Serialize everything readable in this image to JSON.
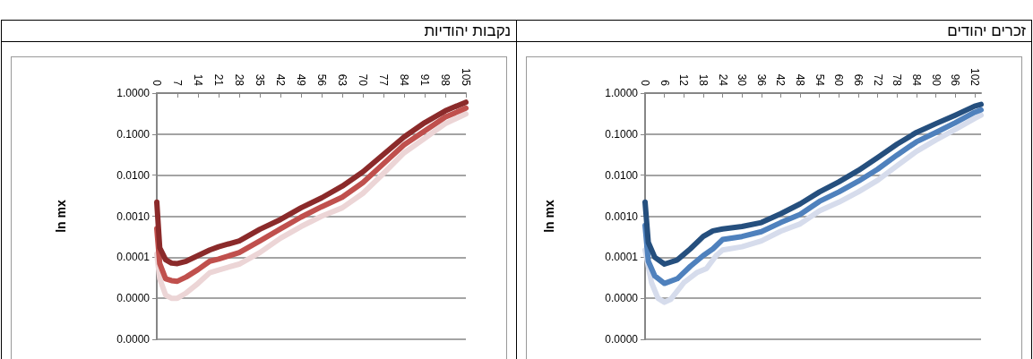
{
  "chart_data": [
    {
      "type": "line",
      "title": "זכרים יהודים",
      "ylabel": "ln mx",
      "log": "y",
      "grid": "y",
      "xlim": [
        0,
        104
      ],
      "xticks": [
        0,
        6,
        12,
        18,
        24,
        30,
        36,
        42,
        48,
        54,
        60,
        66,
        72,
        78,
        84,
        90,
        96,
        102
      ],
      "ylim": [
        1e-06,
        1
      ],
      "yticks": [
        {
          "value": 1e-06,
          "label": "0.0000"
        },
        {
          "value": 1e-05,
          "label": "0.0000"
        },
        {
          "value": 0.0001,
          "label": "0.0001"
        },
        {
          "value": 0.001,
          "label": "0.0010"
        },
        {
          "value": 0.01,
          "label": "0.0100"
        },
        {
          "value": 0.1,
          "label": "0.1000"
        },
        {
          "value": 1,
          "label": "1.0000"
        }
      ],
      "series": [
        {
          "color": "#d6dcec",
          "x": [
            0,
            2,
            4,
            6,
            8,
            12,
            16,
            19,
            22,
            24,
            30,
            36,
            42,
            48,
            54,
            60,
            66,
            72,
            78,
            84,
            90,
            96,
            102,
            104
          ],
          "values": [
            0.00015,
            2.4e-05,
            1e-05,
            8e-06,
            9.5e-06,
            2.4e-05,
            4.2e-05,
            5.3e-05,
            0.00011,
            0.00015,
            0.00018,
            0.00025,
            0.00043,
            0.00065,
            0.00135,
            0.0022,
            0.0039,
            0.0075,
            0.017,
            0.038,
            0.072,
            0.13,
            0.24,
            0.29
          ]
        },
        {
          "color": "#4f81bd",
          "x": [
            0,
            1,
            3,
            6,
            10,
            14,
            18,
            21,
            24,
            30,
            36,
            42,
            48,
            54,
            60,
            66,
            72,
            78,
            84,
            90,
            96,
            102,
            104
          ],
          "values": [
            0.0006,
            8e-05,
            3.5e-05,
            2.3e-05,
            3e-05,
            6e-05,
            0.00011,
            0.00016,
            0.00027,
            0.00032,
            0.00042,
            0.0007,
            0.0011,
            0.0023,
            0.0039,
            0.0071,
            0.014,
            0.031,
            0.065,
            0.11,
            0.19,
            0.34,
            0.39
          ]
        },
        {
          "color": "#254f7e",
          "x": [
            0,
            1,
            3,
            6,
            10,
            14,
            18,
            21,
            24,
            30,
            36,
            42,
            48,
            54,
            60,
            66,
            72,
            78,
            84,
            90,
            96,
            102,
            104
          ],
          "values": [
            0.0022,
            0.00023,
            0.0001,
            6.8e-05,
            8.6e-05,
            0.00016,
            0.00032,
            0.00044,
            0.00049,
            0.00056,
            0.0007,
            0.00115,
            0.002,
            0.0039,
            0.0069,
            0.013,
            0.027,
            0.057,
            0.11,
            0.18,
            0.29,
            0.48,
            0.53
          ]
        }
      ]
    },
    {
      "type": "line",
      "title": "נקבות יהודיות",
      "ylabel": "ln mx",
      "log": "y",
      "grid": "y",
      "xlim": [
        0,
        105
      ],
      "xticks": [
        0,
        7,
        14,
        21,
        28,
        35,
        42,
        49,
        56,
        63,
        70,
        77,
        84,
        91,
        98,
        105
      ],
      "ylim": [
        1e-06,
        1
      ],
      "yticks": [
        {
          "value": 1e-06,
          "label": "0.0000"
        },
        {
          "value": 1e-05,
          "label": "0.0000"
        },
        {
          "value": 0.0001,
          "label": "0.0001"
        },
        {
          "value": 0.001,
          "label": "0.0010"
        },
        {
          "value": 0.01,
          "label": "0.0100"
        },
        {
          "value": 0.1,
          "label": "0.1000"
        },
        {
          "value": 1,
          "label": "1.0000"
        }
      ],
      "series": [
        {
          "color": "#ecd5d6",
          "x": [
            0,
            1,
            3,
            5,
            7,
            10,
            14,
            18,
            21,
            28,
            35,
            42,
            49,
            56,
            63,
            70,
            77,
            84,
            91,
            98,
            105
          ],
          "values": [
            0.00012,
            3e-05,
            1.2e-05,
            1e-05,
            1e-05,
            1.35e-05,
            2.3e-05,
            4.2e-05,
            4.9e-05,
            6.8e-05,
            0.00013,
            0.00029,
            0.00056,
            0.001,
            0.0016,
            0.0036,
            0.011,
            0.035,
            0.079,
            0.18,
            0.31
          ]
        },
        {
          "color": "#c0504d",
          "x": [
            0,
            1,
            3,
            5,
            7,
            10,
            14,
            18,
            21,
            28,
            35,
            42,
            49,
            56,
            63,
            70,
            77,
            84,
            91,
            98,
            105
          ],
          "values": [
            0.0005,
            7e-05,
            3e-05,
            2.7e-05,
            2.6e-05,
            3.3e-05,
            5e-05,
            8e-05,
            9e-05,
            0.00013,
            0.00025,
            0.00049,
            0.00095,
            0.0017,
            0.0029,
            0.0066,
            0.019,
            0.055,
            0.12,
            0.26,
            0.43
          ]
        },
        {
          "color": "#8b2a2a",
          "x": [
            0,
            1,
            3,
            5,
            7,
            10,
            14,
            18,
            21,
            28,
            35,
            42,
            49,
            56,
            63,
            70,
            77,
            84,
            91,
            98,
            105
          ],
          "values": [
            0.0022,
            0.00017,
            8.7e-05,
            7.2e-05,
            7e-05,
            8e-05,
            0.00011,
            0.00015,
            0.00018,
            0.00025,
            0.00048,
            0.00083,
            0.0016,
            0.0028,
            0.0054,
            0.012,
            0.032,
            0.085,
            0.19,
            0.37,
            0.6
          ]
        }
      ]
    }
  ]
}
